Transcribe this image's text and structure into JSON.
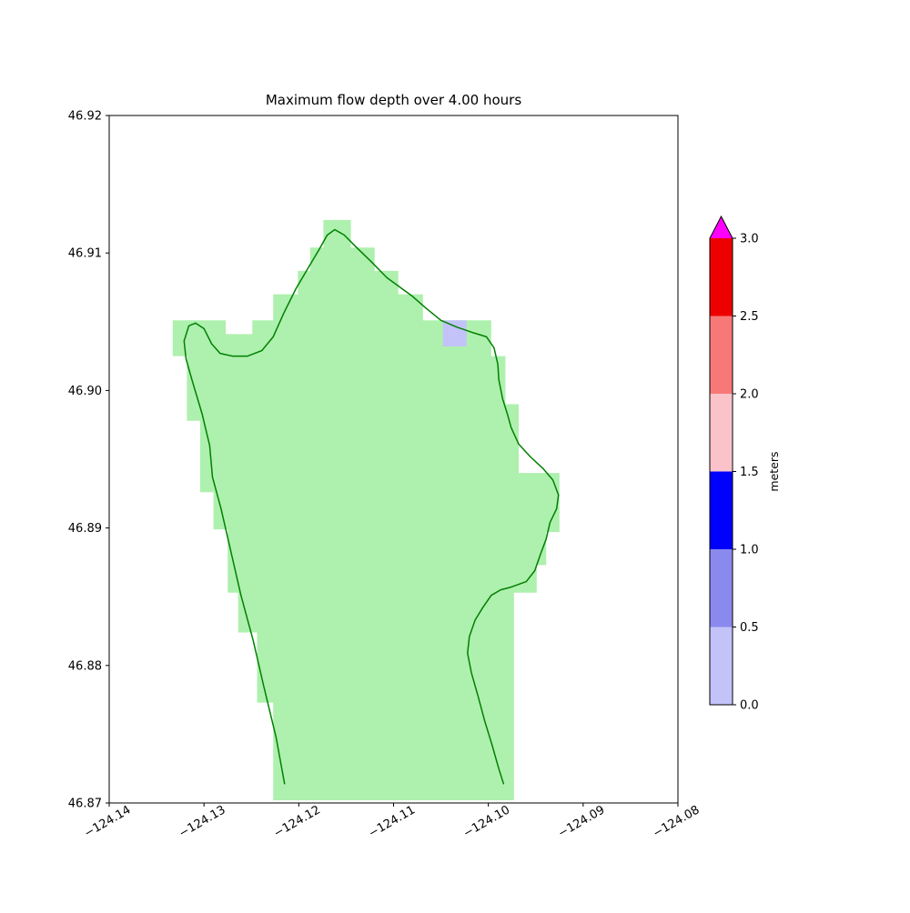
{
  "figure": {
    "title": "Maximum flow depth over 4.00 hours",
    "background_color": "#ffffff"
  },
  "chart_data": {
    "type": "heatmap",
    "title": "Maximum flow depth over 4.00 hours",
    "xlabel": "",
    "ylabel": "",
    "grid": false,
    "x_axis": {
      "lim": [
        -124.14,
        -124.08
      ],
      "ticks": [
        -124.14,
        -124.13,
        -124.12,
        -124.11,
        -124.1,
        -124.09,
        -124.08
      ],
      "tick_labels": [
        "−124.14",
        "−124.13",
        "−124.12",
        "−124.11",
        "−124.10",
        "−124.09",
        "−124.08"
      ],
      "tick_rotation_deg": 30
    },
    "y_axis": {
      "lim": [
        46.87,
        46.92
      ],
      "ticks": [
        46.92,
        46.91,
        46.9,
        46.89,
        46.88,
        46.87
      ],
      "tick_labels": [
        "46.92",
        "46.91",
        "46.90",
        "46.89",
        "46.88",
        "46.87"
      ]
    },
    "land_region": {
      "description": "dry land / zero-depth masked area shown in light green",
      "fill_color": "#aef0ae",
      "polygon": [
        [
          -124.1174,
          46.9124
        ],
        [
          -124.1145,
          46.9124
        ],
        [
          -124.1145,
          46.9104
        ],
        [
          -124.112,
          46.9104
        ],
        [
          -124.112,
          46.9087
        ],
        [
          -124.1095,
          46.9087
        ],
        [
          -124.1095,
          46.907
        ],
        [
          -124.1069,
          46.907
        ],
        [
          -124.1069,
          46.9051
        ],
        [
          -124.0997,
          46.9051
        ],
        [
          -124.0997,
          46.9025
        ],
        [
          -124.0982,
          46.9025
        ],
        [
          -124.0982,
          46.899
        ],
        [
          -124.0968,
          46.899
        ],
        [
          -124.0968,
          46.894
        ],
        [
          -124.0925,
          46.894
        ],
        [
          -124.0925,
          46.8897
        ],
        [
          -124.0939,
          46.8897
        ],
        [
          -124.0939,
          46.8873
        ],
        [
          -124.0949,
          46.8873
        ],
        [
          -124.0949,
          46.8853
        ],
        [
          -124.0973,
          46.8853
        ],
        [
          -124.0973,
          46.8702
        ],
        [
          -124.1227,
          46.8702
        ],
        [
          -124.1227,
          46.8773
        ],
        [
          -124.1244,
          46.8773
        ],
        [
          -124.1244,
          46.8824
        ],
        [
          -124.1264,
          46.8824
        ],
        [
          -124.1264,
          46.8853
        ],
        [
          -124.1275,
          46.8853
        ],
        [
          -124.1275,
          46.8899
        ],
        [
          -124.129,
          46.8899
        ],
        [
          -124.129,
          46.8926
        ],
        [
          -124.1304,
          46.8926
        ],
        [
          -124.1304,
          46.8978
        ],
        [
          -124.1318,
          46.8978
        ],
        [
          -124.1318,
          46.9025
        ],
        [
          -124.1333,
          46.9025
        ],
        [
          -124.1333,
          46.9051
        ],
        [
          -124.1277,
          46.9051
        ],
        [
          -124.1277,
          46.9041
        ],
        [
          -124.1249,
          46.9041
        ],
        [
          -124.1249,
          46.9051
        ],
        [
          -124.1227,
          46.9051
        ],
        [
          -124.1227,
          46.907
        ],
        [
          -124.1201,
          46.907
        ],
        [
          -124.1201,
          46.9087
        ],
        [
          -124.1188,
          46.9087
        ],
        [
          -124.1188,
          46.9104
        ],
        [
          -124.1174,
          46.9104
        ]
      ]
    },
    "coastline": {
      "color": "#008000",
      "points": [
        [
          -124.1215,
          46.8714
        ],
        [
          -124.1224,
          46.8748
        ],
        [
          -124.1237,
          46.8785
        ],
        [
          -124.1248,
          46.8818
        ],
        [
          -124.1261,
          46.8851
        ],
        [
          -124.1273,
          46.8887
        ],
        [
          -124.1282,
          46.8914
        ],
        [
          -124.1291,
          46.8937
        ],
        [
          -124.1294,
          46.896
        ],
        [
          -124.1302,
          46.8983
        ],
        [
          -124.1312,
          46.9006
        ],
        [
          -124.1319,
          46.9023
        ],
        [
          -124.1321,
          46.9036
        ],
        [
          -124.1316,
          46.9047
        ],
        [
          -124.1309,
          46.9049
        ],
        [
          -124.13,
          46.9045
        ],
        [
          -124.1292,
          46.9034
        ],
        [
          -124.1283,
          46.9027
        ],
        [
          -124.127,
          46.9025
        ],
        [
          -124.1254,
          46.9025
        ],
        [
          -124.1239,
          46.9029
        ],
        [
          -124.1227,
          46.9039
        ],
        [
          -124.1216,
          46.9056
        ],
        [
          -124.1203,
          46.9074
        ],
        [
          -124.1191,
          46.9088
        ],
        [
          -124.1179,
          46.9102
        ],
        [
          -124.117,
          46.9113
        ],
        [
          -124.1162,
          46.9117
        ],
        [
          -124.1152,
          46.9113
        ],
        [
          -124.1139,
          46.9104
        ],
        [
          -124.1124,
          46.9094
        ],
        [
          -124.1107,
          46.9082
        ],
        [
          -124.1095,
          46.9076
        ],
        [
          -124.1081,
          46.9069
        ],
        [
          -124.1066,
          46.906
        ],
        [
          -124.105,
          46.9051
        ],
        [
          -124.1033,
          46.9046
        ],
        [
          -124.1016,
          46.9042
        ],
        [
          -124.1002,
          46.9039
        ],
        [
          -124.0994,
          46.9031
        ],
        [
          -124.099,
          46.9019
        ],
        [
          -124.0989,
          46.9008
        ],
        [
          -124.0985,
          46.8994
        ],
        [
          -124.098,
          46.8983
        ],
        [
          -124.0976,
          46.8973
        ],
        [
          -124.0968,
          46.8961
        ],
        [
          -124.0956,
          46.8952
        ],
        [
          -124.0942,
          46.8943
        ],
        [
          -124.0932,
          46.8935
        ],
        [
          -124.0926,
          46.8924
        ],
        [
          -124.0928,
          46.8914
        ],
        [
          -124.0935,
          46.8904
        ],
        [
          -124.0939,
          46.8892
        ],
        [
          -124.0945,
          46.8881
        ],
        [
          -124.0951,
          46.8869
        ],
        [
          -124.096,
          46.8861
        ],
        [
          -124.0976,
          46.8857
        ],
        [
          -124.0987,
          46.8855
        ],
        [
          -124.0997,
          46.8851
        ],
        [
          -124.1006,
          46.8842
        ],
        [
          -124.1014,
          46.8833
        ],
        [
          -124.102,
          46.8821
        ],
        [
          -124.1022,
          46.8809
        ],
        [
          -124.1018,
          46.8795
        ],
        [
          -124.1011,
          46.8778
        ],
        [
          -124.1004,
          46.876
        ],
        [
          -124.0996,
          46.8742
        ],
        [
          -124.0989,
          46.8725
        ],
        [
          -124.0984,
          46.8714
        ]
      ]
    },
    "flooded_cells": [
      {
        "x_range": [
          -124.1048,
          -124.1023
        ],
        "y_range": [
          46.9032,
          46.9051
        ],
        "depth_bin_m": [
          0.0,
          0.5
        ],
        "color": "#c3c3fa"
      }
    ],
    "colorbar": {
      "label": "meters",
      "orientation": "vertical",
      "vmin": 0.0,
      "vmax": 3.0,
      "ticks": [
        0.0,
        0.5,
        1.0,
        1.5,
        2.0,
        2.5,
        3.0
      ],
      "tick_labels": [
        "0.0",
        "0.5",
        "1.0",
        "1.5",
        "2.0",
        "2.5",
        "3.0"
      ],
      "segments": [
        {
          "range": [
            0.0,
            0.5
          ],
          "color": "#c3c3fa"
        },
        {
          "range": [
            0.5,
            1.0
          ],
          "color": "#8a8aee"
        },
        {
          "range": [
            1.0,
            1.5
          ],
          "color": "#0000ff"
        },
        {
          "range": [
            1.5,
            2.0
          ],
          "color": "#fac3ca"
        },
        {
          "range": [
            2.0,
            2.5
          ],
          "color": "#f87878"
        },
        {
          "range": [
            2.5,
            3.0
          ],
          "color": "#ee0000"
        }
      ],
      "extend": "max",
      "over_color": "#ff00ff"
    }
  }
}
